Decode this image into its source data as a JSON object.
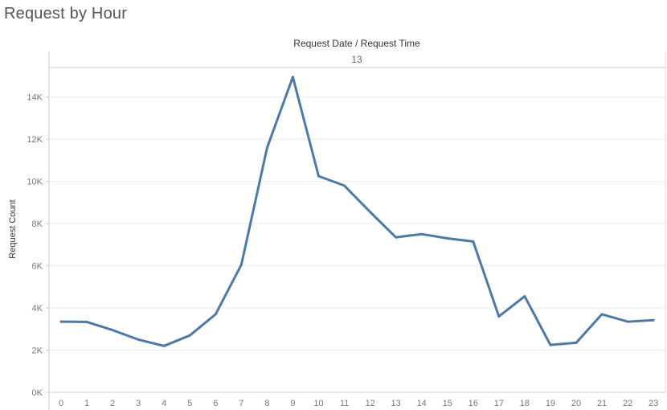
{
  "sheet": {
    "title": "Request by Hour"
  },
  "header": {
    "field_label": "Request Date / Request Time",
    "pane_value": "13"
  },
  "chart_data": {
    "type": "line",
    "xlabel": "",
    "ylabel": "Request Count",
    "x": [
      0,
      1,
      2,
      3,
      4,
      5,
      6,
      7,
      8,
      9,
      10,
      11,
      12,
      13,
      14,
      15,
      16,
      17,
      18,
      19,
      20,
      21,
      22,
      23
    ],
    "x_tick_labels": [
      "0",
      "1",
      "2",
      "3",
      "4",
      "5",
      "6",
      "7",
      "8",
      "9",
      "10",
      "11",
      "12",
      "13",
      "14",
      "15",
      "16",
      "17",
      "18",
      "19",
      "20",
      "21",
      "22",
      "23"
    ],
    "series": [
      {
        "values": [
          3350,
          3340,
          2950,
          2500,
          2200,
          2700,
          3700,
          6050,
          11600,
          14950,
          10250,
          9800,
          8550,
          7350,
          7500,
          7300,
          7150,
          3600,
          4550,
          2250,
          2350,
          3700,
          3350,
          3420
        ],
        "color": "#4e79a7"
      }
    ],
    "y_ticks": [
      0,
      2000,
      4000,
      6000,
      8000,
      10000,
      12000,
      14000
    ],
    "y_tick_labels": [
      "0K",
      "2K",
      "4K",
      "6K",
      "8K",
      "10K",
      "12K",
      "14K"
    ],
    "ylim": [
      0,
      15400
    ],
    "grid": true,
    "legend": "none"
  }
}
